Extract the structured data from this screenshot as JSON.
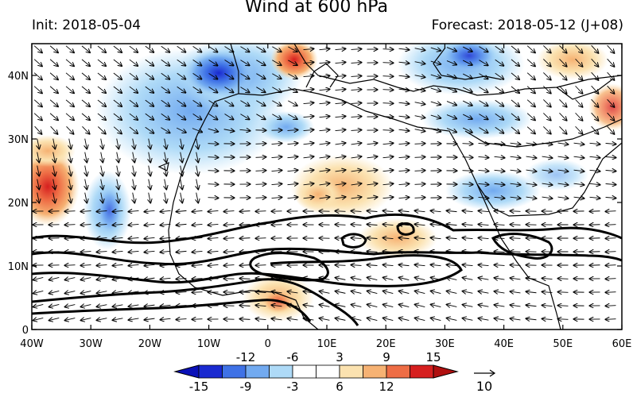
{
  "map": {
    "title": "Wind at 600 hPa",
    "init_label": "Init: 2018-05-04",
    "forecast_label": "Forecast: 2018-05-12 (J+08)",
    "lon_ticks": [
      "40W",
      "30W",
      "20W",
      "10W",
      "0",
      "10E",
      "20E",
      "30E",
      "40E",
      "50E",
      "60E"
    ],
    "lat_ticks": [
      "40N",
      "30N",
      "20N",
      "10N",
      "0"
    ],
    "colorbar": {
      "upper_labels": [
        "-12",
        "-6",
        "3",
        "9",
        "15"
      ],
      "lower_labels": [
        "-15",
        "-9",
        "-3",
        "6",
        "12"
      ],
      "colors": [
        "#1a2ad0",
        "#3f72e6",
        "#72aaf0",
        "#aedaf7",
        "#ffffff",
        "#ffffff",
        "#fbe2b0",
        "#f6b273",
        "#ee6d45",
        "#d61f1f"
      ],
      "ref_vector_label": "10"
    }
  }
}
